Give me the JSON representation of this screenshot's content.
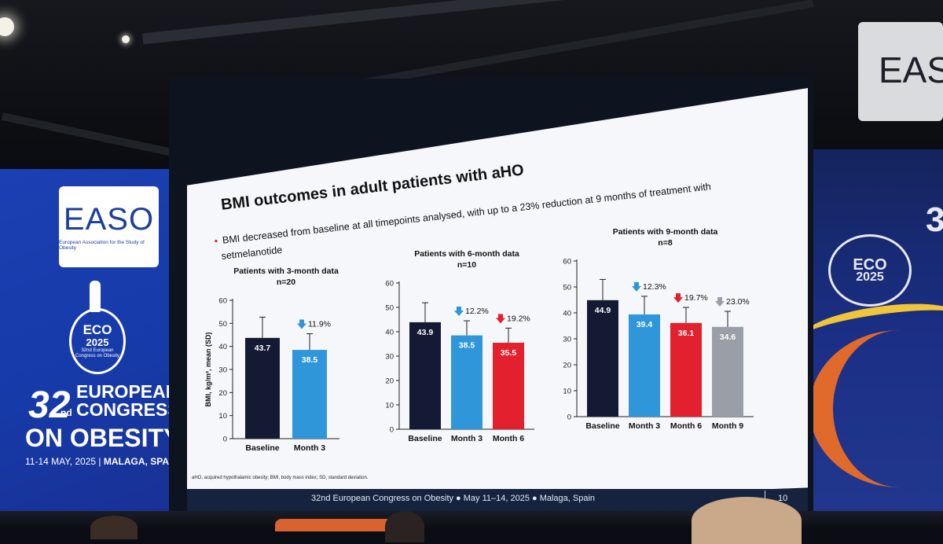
{
  "slide": {
    "title": "BMI outcomes in adult patients with aHO",
    "bullet_line1": "BMI decreased from baseline at all timepoints analysed, with up to a 23% reduction at 9 months of treatment with",
    "bullet_line2": "setmelanotide",
    "footnote": "aHO, acquired hypothalamic obesity; BMI, body mass index; SD, standard deviation.",
    "footer": "32nd European Congress on Obesity ● May 11–14, 2025 ● Malaga, Spain",
    "page_number": "10",
    "ylabel": "BMI, kg/m², mean (SD)"
  },
  "banner": {
    "easo_word": "EASO",
    "easo_sub": "European Association for the Study of Obesity",
    "eco_word": "ECO",
    "eco_year": "2025",
    "eco_small": "32nd European Congress on Obesity",
    "congress_num": "32",
    "congress_nd": "nd",
    "line1": "EUROPEAN",
    "line2": "CONGRESS",
    "line3": "ON OBESITY",
    "date": "11-14 MAY, 2025",
    "place": "MALAGA, SPAIN"
  },
  "chart_data": [
    {
      "type": "bar",
      "title": "Patients with 3-month data",
      "subtitle": "n=20",
      "categories": [
        "Baseline",
        "Month 3"
      ],
      "values": [
        43.7,
        38.5
      ],
      "errors": [
        9,
        7
      ],
      "reductions": [
        "",
        "11.9%"
      ],
      "ylim": [
        0,
        60
      ],
      "yticks": [
        0,
        10,
        20,
        30,
        40,
        50,
        60
      ],
      "colors": [
        "#141a33",
        "#2f97d9"
      ],
      "arrow_colors": [
        "",
        "#2f97d9"
      ]
    },
    {
      "type": "bar",
      "title": "Patients with 6-month data",
      "subtitle": "n=10",
      "categories": [
        "Baseline",
        "Month 3",
        "Month 6"
      ],
      "values": [
        43.9,
        38.5,
        35.5
      ],
      "errors": [
        8,
        6,
        6
      ],
      "reductions": [
        "",
        "12.2%",
        "19.2%"
      ],
      "ylim": [
        0,
        60
      ],
      "yticks": [
        0,
        10,
        20,
        30,
        40,
        50,
        60
      ],
      "colors": [
        "#141a33",
        "#2f97d9",
        "#e2202e"
      ],
      "arrow_colors": [
        "",
        "#2f97d9",
        "#e2202e"
      ]
    },
    {
      "type": "bar",
      "title": "Patients with 9-month data",
      "subtitle": "n=8",
      "categories": [
        "Baseline",
        "Month 3",
        "Month 6",
        "Month 9"
      ],
      "values": [
        44.9,
        39.4,
        36.1,
        34.6
      ],
      "errors": [
        8,
        7,
        6,
        6
      ],
      "reductions": [
        "",
        "12.3%",
        "19.7%",
        "23.0%"
      ],
      "ylim": [
        0,
        60
      ],
      "yticks": [
        0,
        10,
        20,
        30,
        40,
        50,
        60
      ],
      "colors": [
        "#141a33",
        "#2f97d9",
        "#e2202e",
        "#9a9ea6"
      ],
      "arrow_colors": [
        "",
        "#2f97d9",
        "#e2202e",
        "#9a9ea6"
      ]
    }
  ]
}
